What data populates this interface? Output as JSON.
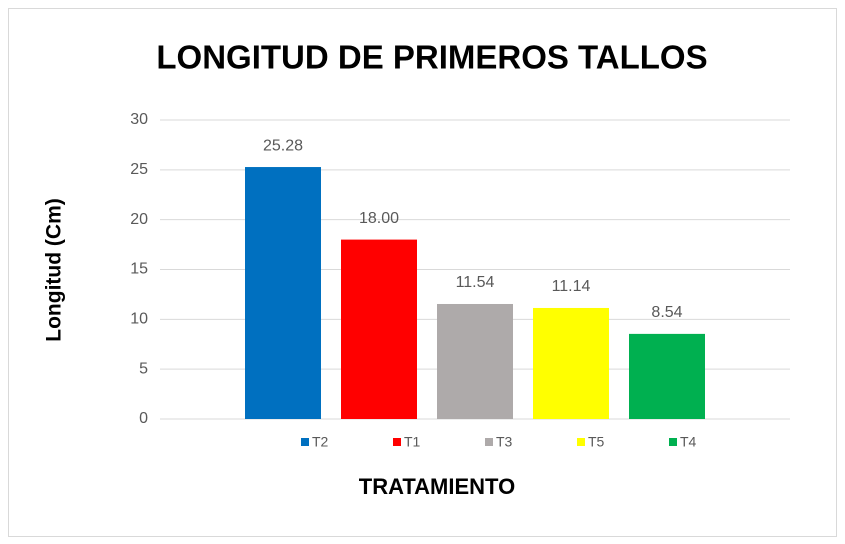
{
  "chart_data": {
    "type": "bar",
    "title": "LONGITUD DE PRIMEROS TALLOS",
    "x_label": "TRATAMIENTO",
    "y_label": "Longitud (Cm)",
    "categories": [
      null
    ],
    "series": [
      {
        "name": "T2",
        "color": "#0070c0",
        "values": [
          25.28
        ],
        "value_labels": [
          "25.28"
        ]
      },
      {
        "name": "T1",
        "color": "#ff0000",
        "values": [
          18
        ],
        "value_labels": [
          "18.00"
        ]
      },
      {
        "name": "T3",
        "color": "#aeaaaa",
        "values": [
          11.54
        ],
        "value_labels": [
          "11.54"
        ]
      },
      {
        "name": "T5",
        "color": "#ffff00",
        "values": [
          11.14
        ],
        "value_labels": [
          "11.14"
        ]
      },
      {
        "name": "T4",
        "color": "#00b050",
        "values": [
          8.54
        ],
        "value_labels": [
          "8.54"
        ]
      }
    ],
    "ylim": [
      0,
      30
    ],
    "yticks": [
      0,
      5,
      10,
      15,
      20,
      25,
      30
    ],
    "grid": true,
    "legend": "bottom"
  }
}
